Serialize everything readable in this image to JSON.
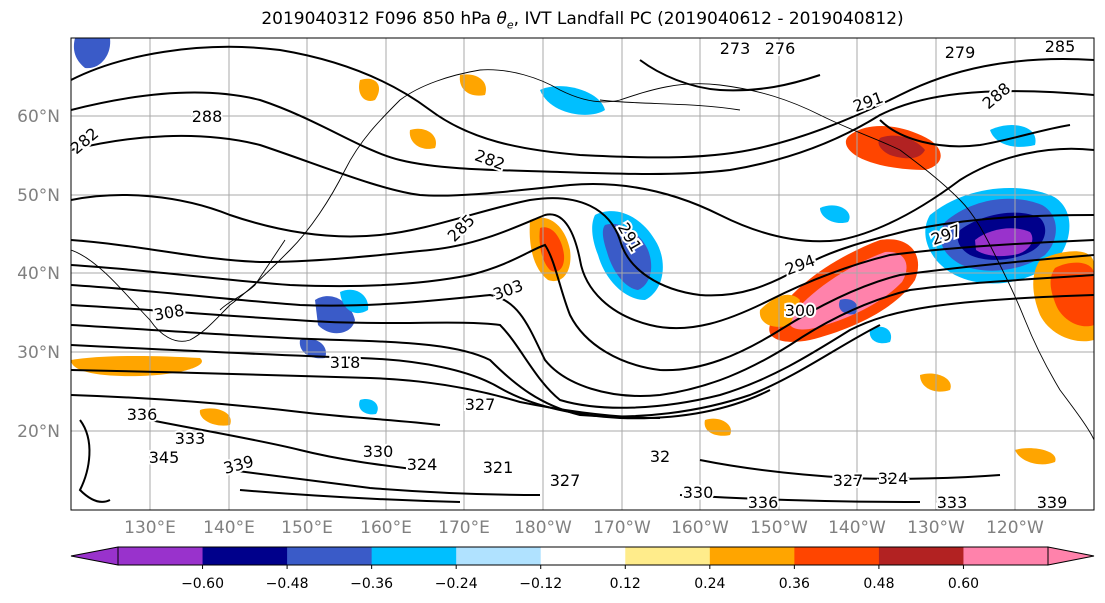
{
  "title": {
    "prefix": "2019040312 F096 850 hPa ",
    "theta_symbol": "θ",
    "theta_subscript": "e",
    "suffix": ", IVT Landfall PC (2019040612 - 2019040812)"
  },
  "map": {
    "lat_labels": [
      "60°N",
      "50°N",
      "40°N",
      "30°N",
      "20°N"
    ],
    "lon_labels": [
      "130°E",
      "140°E",
      "150°E",
      "160°E",
      "170°E",
      "180°W",
      "170°W",
      "160°W",
      "150°W",
      "140°W",
      "130°W",
      "120°W"
    ],
    "contour_labels": [
      "273",
      "276",
      "279",
      "288",
      "285",
      "291",
      "288",
      "282",
      "282",
      "285",
      "291",
      "297",
      "294",
      "300",
      "303",
      "308",
      "318",
      "327",
      "336",
      "330",
      "324",
      "321",
      "327",
      "333",
      "345",
      "339",
      "330",
      "336",
      "327",
      "324",
      "333",
      "339",
      "32"
    ],
    "colors": {
      "contour": "#000000",
      "grid": "#a8a8a8",
      "coast": "#000000"
    }
  },
  "colorbar": {
    "ticks": [
      "−0.60",
      "−0.48",
      "−0.36",
      "−0.24",
      "−0.12",
      "0.12",
      "0.24",
      "0.36",
      "0.48",
      "0.60"
    ],
    "colors": [
      "#9932cc",
      "#00008b",
      "#3a5bc8",
      "#00bfff",
      "#b0e2ff",
      "#ffffff",
      "#ffec8b",
      "#ffa500",
      "#ff4500",
      "#b22222",
      "#ff82ab"
    ]
  }
}
